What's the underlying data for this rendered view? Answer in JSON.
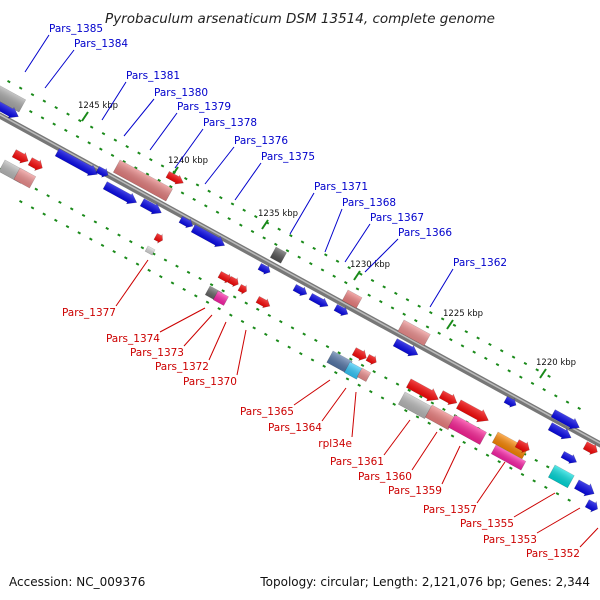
{
  "title": "Pyrobaculum arsenaticum DSM 13514, complete genome",
  "footer": {
    "accession": "Accession: NC_009376",
    "summary": "Topology: circular; Length: 2,121,076 bp; Genes: 2,344"
  },
  "colors": {
    "upper_label": "#0000cc",
    "lower_label": "#cc0000",
    "backbone": "#888888",
    "tick": "#1a8a1a"
  },
  "scale_ticks": [
    "1245 kbp",
    "1240 kbp",
    "1235 kbp",
    "1230 kbp",
    "1225 kbp",
    "1220 kbp"
  ],
  "upper_genes": [
    "Pars_1385",
    "Pars_1384",
    "Pars_1381",
    "Pars_1380",
    "Pars_1379",
    "Pars_1378",
    "Pars_1376",
    "Pars_1375",
    "Pars_1371",
    "Pars_1368",
    "Pars_1367",
    "Pars_1366",
    "Pars_1362"
  ],
  "lower_genes": [
    "Pars_1377",
    "Pars_1374",
    "Pars_1373",
    "Pars_1372",
    "Pars_1370",
    "Pars_1365",
    "Pars_1364",
    "rpl34e",
    "Pars_1361",
    "Pars_1360",
    "Pars_1359",
    "Pars_1357",
    "Pars_1355",
    "Pars_1353",
    "Pars_1352"
  ]
}
